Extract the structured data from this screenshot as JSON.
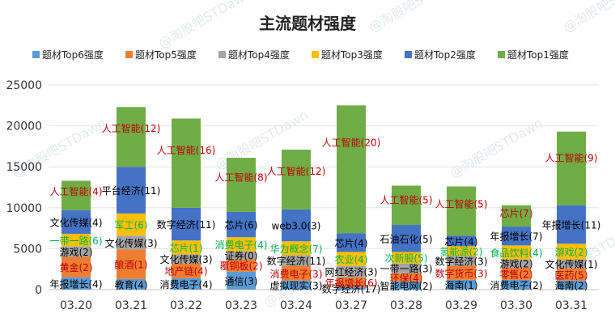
{
  "chart_data": {
    "type": "bar",
    "stacked": true,
    "title": "主流题材强度",
    "categories": [
      "03.20",
      "03.21",
      "03.22",
      "03.23",
      "03.24",
      "03.27",
      "03.28",
      "03.29",
      "03.30",
      "03.31"
    ],
    "ylim": [
      0,
      25000
    ],
    "yticks": [
      0,
      5000,
      10000,
      15000,
      20000,
      25000
    ],
    "grid": true,
    "legend_position": "top",
    "legend_order": [
      "题材Top6强度",
      "题材Top5强度",
      "题材Top4强度",
      "题材Top3强度",
      "题材Top2强度",
      "题材Top1强度"
    ],
    "watermark": "@淘股吧STDawn",
    "series": [
      {
        "name": "题材Top1强度",
        "color": "#70ad47",
        "label_color": "#c00000",
        "values": [
          3600,
          7300,
          10900,
          6600,
          7300,
          15600,
          4800,
          6000,
          2600,
          9000
        ],
        "labels": [
          "人工智能(4)",
          "人工智能(12)",
          "人工智能(16)",
          "人工智能(8)",
          "人工智能(12)",
          "人工智能(20)",
          "人工智能(5)",
          "人工智能(5)",
          "芯片(7)",
          "人工智能(9)"
        ]
      },
      {
        "name": "题材Top2强度",
        "color": "#4472c4",
        "label_color": "#000000",
        "values": [
          2900,
          5700,
          4000,
          3100,
          3900,
          2300,
          3300,
          1300,
          2300,
          4700
        ],
        "labels": [
          "文化传媒(4)",
          "平台经济(11)",
          "数字经济(11)",
          "芯片(6)",
          "web3.0(3)",
          "芯片(4)",
          "石油石化(5)",
          "芯片(4)",
          "年报增长(7)",
          "年报增长(11)"
        ]
      },
      {
        "name": "题材Top3强度",
        "color": "#ffc000",
        "label_color": "#00b050",
        "values": [
          1500,
          2700,
          1700,
          1700,
          1700,
          1700,
          1400,
          1200,
          1700,
          1900
        ],
        "labels": [
          "一带一路(6)",
          "军工(6)",
          "芯片(1)",
          "消费电子(4)",
          "华为概念(7)",
          "农业(4)",
          "次新股(5)",
          "氢能源(2)",
          "食品饮料(4)",
          "游戏(2)"
        ]
      },
      {
        "name": "题材Top4强度",
        "color": "#a5a5a5",
        "label_color": "#000000",
        "values": [
          1300,
          1700,
          1100,
          1000,
          1300,
          1400,
          1200,
          1200,
          1000,
          1100
        ],
        "labels": [
          "游戏(2)",
          "文化传媒(3)",
          "文化传媒(3)",
          "证券(0)",
          "数字经济(11)",
          "网红经济(3)",
          "一带一路(3)",
          "数字经济(3)",
          "游戏(2)",
          "文化传媒(1)"
        ]
      },
      {
        "name": "题材Top5强度",
        "color": "#ed7d31",
        "label_color": "#c00000",
        "values": [
          2500,
          3600,
          1800,
          1500,
          1800,
          1200,
          1000,
          1700,
          1500,
          1500
        ],
        "labels": [
          "黄金(2)",
          "酿酒(1)",
          "地产链(4)",
          "覆铜板(2)",
          "消费电子(3)",
          "年报增长(6)",
          "环保(4)",
          "数字货币(3)",
          "零售(2)",
          "医药(5)"
        ]
      },
      {
        "name": "题材Top6强度",
        "color": "#5b9bd5",
        "label_color": "#000000",
        "values": [
          1500,
          1300,
          1400,
          2200,
          1100,
          300,
          1000,
          1200,
          1200,
          1100
        ],
        "labels": [
          "年报增长(4)",
          "教育(4)",
          "消费电子(4)",
          "通信(3)",
          "虚拟现实(3)",
          "数字经济(17)",
          "智能电网(2)",
          "海南(1)",
          "消费电子(2)",
          "海南(2)"
        ]
      }
    ]
  }
}
